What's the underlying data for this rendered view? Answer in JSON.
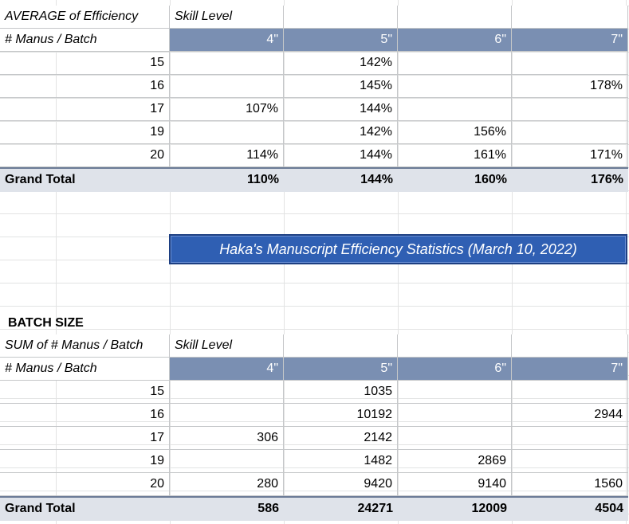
{
  "efficiency_table": {
    "corner_label": "AVERAGE of Efficiency",
    "column_group_label": "Skill Level",
    "row_header_label": "# Manus / Batch",
    "columns": [
      "4\"",
      "5\"",
      "6\"",
      "7\""
    ],
    "rows": [
      {
        "key": "15",
        "values": [
          "",
          "142%",
          "",
          ""
        ]
      },
      {
        "key": "16",
        "values": [
          "",
          "145%",
          "",
          "178%"
        ]
      },
      {
        "key": "17",
        "values": [
          "107%",
          "144%",
          "",
          ""
        ]
      },
      {
        "key": "19",
        "values": [
          "",
          "142%",
          "156%",
          ""
        ]
      },
      {
        "key": "20",
        "values": [
          "114%",
          "144%",
          "161%",
          "171%"
        ]
      }
    ],
    "total_label": "Grand Total",
    "totals": [
      "110%",
      "144%",
      "160%",
      "176%"
    ]
  },
  "banner": {
    "title": "Haka's Manuscript Efficiency Statistics (March 10, 2022)"
  },
  "batch_section": {
    "label": "BATCH SIZE"
  },
  "batch_table": {
    "corner_label": "SUM of # Manus / Batch",
    "column_group_label": "Skill Level",
    "row_header_label": "# Manus / Batch",
    "columns": [
      "4\"",
      "5\"",
      "6\"",
      "7\""
    ],
    "rows": [
      {
        "key": "15",
        "values": [
          "",
          "1035",
          "",
          ""
        ]
      },
      {
        "key": "16",
        "values": [
          "",
          "10192",
          "",
          "2944"
        ]
      },
      {
        "key": "17",
        "values": [
          "306",
          "2142",
          "",
          ""
        ]
      },
      {
        "key": "19",
        "values": [
          "",
          "1482",
          "2869",
          ""
        ]
      },
      {
        "key": "20",
        "values": [
          "280",
          "9420",
          "9140",
          "1560"
        ]
      }
    ],
    "total_label": "Grand Total",
    "totals": [
      "586",
      "24271",
      "12009",
      "4504"
    ]
  },
  "colors": {
    "header_fill": "#7a8fb2",
    "total_fill": "#dfe3ea",
    "banner_fill": "#2f5fb3"
  }
}
